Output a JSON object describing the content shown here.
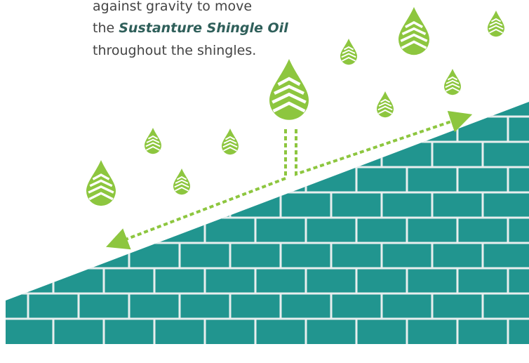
{
  "caption": {
    "line1": "against gravity to move",
    "line2_prefix": "the",
    "line2_emphasis": "Sustanture Shingle Oil",
    "line3": "throughout the shingles."
  }
}
